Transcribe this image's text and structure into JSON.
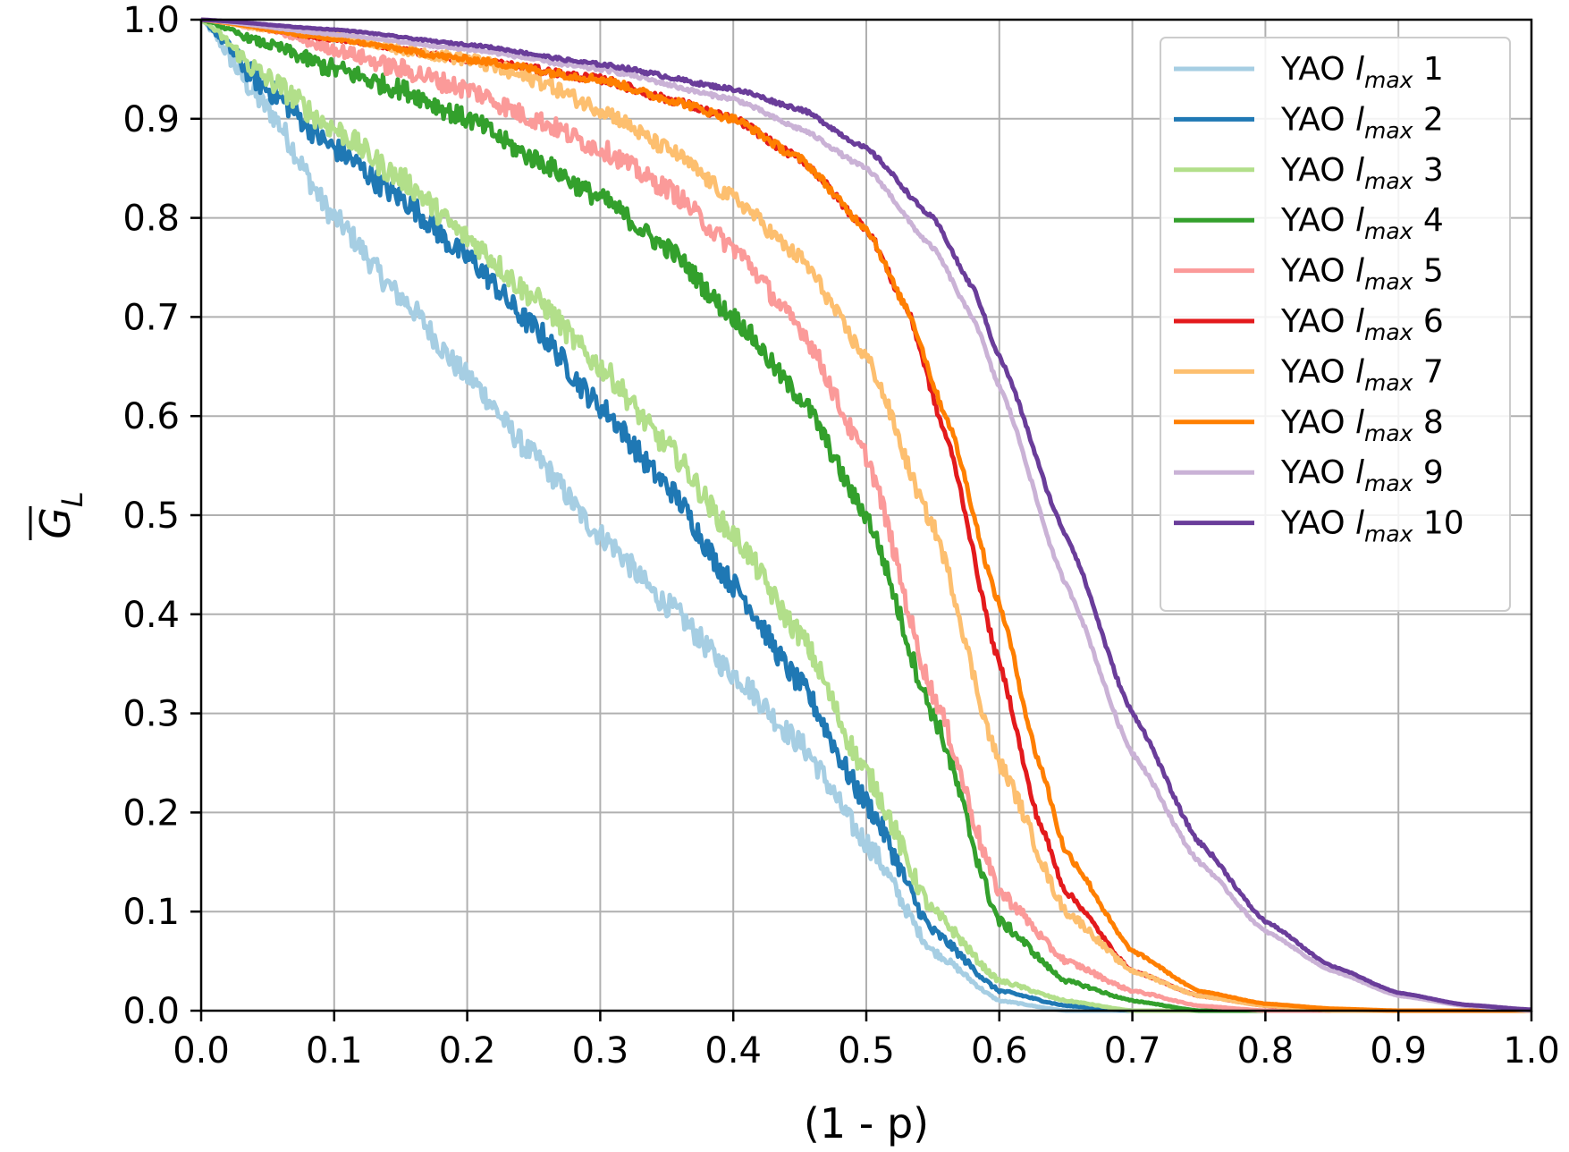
{
  "chart_data": {
    "type": "line",
    "xlabel": "(1 - p)",
    "ylabel": "G",
    "ylabel_sub": "L",
    "ylabel_overline": true,
    "xlim": [
      0.0,
      1.0
    ],
    "ylim": [
      0.0,
      1.0
    ],
    "xticks": [
      "0.0",
      "0.1",
      "0.2",
      "0.3",
      "0.4",
      "0.5",
      "0.6",
      "0.7",
      "0.8",
      "0.9",
      "1.0"
    ],
    "yticks": [
      "0.0",
      "0.1",
      "0.2",
      "0.3",
      "0.4",
      "0.5",
      "0.6",
      "0.7",
      "0.8",
      "0.9",
      "1.0"
    ],
    "grid": true,
    "legend_position": "top-right",
    "series": [
      {
        "name": "YAO",
        "sub": "max",
        "num": "1",
        "color": "#a6cee3",
        "noise": 0.012,
        "points": [
          [
            0,
            1.0
          ],
          [
            0.05,
            0.91
          ],
          [
            0.1,
            0.8
          ],
          [
            0.15,
            0.72
          ],
          [
            0.2,
            0.64
          ],
          [
            0.25,
            0.56
          ],
          [
            0.3,
            0.48
          ],
          [
            0.35,
            0.41
          ],
          [
            0.4,
            0.34
          ],
          [
            0.45,
            0.27
          ],
          [
            0.5,
            0.17
          ],
          [
            0.55,
            0.06
          ],
          [
            0.6,
            0.01
          ],
          [
            0.65,
            0.0
          ],
          [
            1.0,
            0.0
          ]
        ]
      },
      {
        "name": "YAO",
        "sub": "max",
        "num": "2",
        "color": "#1f78b4",
        "noise": 0.012,
        "points": [
          [
            0,
            1.0
          ],
          [
            0.05,
            0.93
          ],
          [
            0.1,
            0.87
          ],
          [
            0.15,
            0.82
          ],
          [
            0.2,
            0.76
          ],
          [
            0.25,
            0.69
          ],
          [
            0.3,
            0.61
          ],
          [
            0.35,
            0.53
          ],
          [
            0.4,
            0.43
          ],
          [
            0.45,
            0.33
          ],
          [
            0.5,
            0.21
          ],
          [
            0.55,
            0.08
          ],
          [
            0.6,
            0.02
          ],
          [
            0.65,
            0.005
          ],
          [
            0.7,
            0.0
          ],
          [
            1.0,
            0.0
          ]
        ]
      },
      {
        "name": "YAO",
        "sub": "max",
        "num": "3",
        "color": "#b2df8a",
        "noise": 0.012,
        "points": [
          [
            0,
            1.0
          ],
          [
            0.05,
            0.94
          ],
          [
            0.1,
            0.89
          ],
          [
            0.15,
            0.84
          ],
          [
            0.2,
            0.78
          ],
          [
            0.25,
            0.72
          ],
          [
            0.3,
            0.65
          ],
          [
            0.35,
            0.57
          ],
          [
            0.4,
            0.48
          ],
          [
            0.45,
            0.38
          ],
          [
            0.5,
            0.24
          ],
          [
            0.55,
            0.1
          ],
          [
            0.6,
            0.03
          ],
          [
            0.65,
            0.01
          ],
          [
            0.7,
            0.0
          ],
          [
            1.0,
            0.0
          ]
        ]
      },
      {
        "name": "YAO",
        "sub": "max",
        "num": "4",
        "color": "#33a02c",
        "noise": 0.01,
        "points": [
          [
            0,
            1.0
          ],
          [
            0.05,
            0.975
          ],
          [
            0.1,
            0.95
          ],
          [
            0.15,
            0.93
          ],
          [
            0.2,
            0.9
          ],
          [
            0.25,
            0.86
          ],
          [
            0.3,
            0.82
          ],
          [
            0.35,
            0.77
          ],
          [
            0.4,
            0.7
          ],
          [
            0.45,
            0.62
          ],
          [
            0.5,
            0.5
          ],
          [
            0.55,
            0.3
          ],
          [
            0.6,
            0.09
          ],
          [
            0.65,
            0.03
          ],
          [
            0.7,
            0.01
          ],
          [
            0.75,
            0.0
          ],
          [
            1.0,
            0.0
          ]
        ]
      },
      {
        "name": "YAO",
        "sub": "max",
        "num": "5",
        "color": "#fb9a99",
        "noise": 0.01,
        "points": [
          [
            0,
            1.0
          ],
          [
            0.05,
            0.99
          ],
          [
            0.1,
            0.97
          ],
          [
            0.15,
            0.95
          ],
          [
            0.2,
            0.93
          ],
          [
            0.25,
            0.9
          ],
          [
            0.3,
            0.87
          ],
          [
            0.35,
            0.83
          ],
          [
            0.4,
            0.77
          ],
          [
            0.45,
            0.69
          ],
          [
            0.5,
            0.56
          ],
          [
            0.55,
            0.32
          ],
          [
            0.6,
            0.12
          ],
          [
            0.65,
            0.05
          ],
          [
            0.7,
            0.02
          ],
          [
            0.75,
            0.005
          ],
          [
            0.8,
            0.0
          ],
          [
            1.0,
            0.0
          ]
        ]
      },
      {
        "name": "YAO",
        "sub": "max",
        "num": "6",
        "color": "#e31a1c",
        "noise": 0.004,
        "points": [
          [
            0,
            1.0
          ],
          [
            0.1,
            0.98
          ],
          [
            0.2,
            0.96
          ],
          [
            0.3,
            0.94
          ],
          [
            0.35,
            0.92
          ],
          [
            0.4,
            0.9
          ],
          [
            0.45,
            0.86
          ],
          [
            0.5,
            0.79
          ],
          [
            0.53,
            0.71
          ],
          [
            0.56,
            0.58
          ],
          [
            0.6,
            0.35
          ],
          [
            0.63,
            0.19
          ],
          [
            0.65,
            0.12
          ],
          [
            0.7,
            0.04
          ],
          [
            0.75,
            0.015
          ],
          [
            0.8,
            0.005
          ],
          [
            0.85,
            0.0
          ],
          [
            1.0,
            0.0
          ]
        ]
      },
      {
        "name": "YAO",
        "sub": "max",
        "num": "7",
        "color": "#fdbf6f",
        "noise": 0.008,
        "points": [
          [
            0,
            1.0
          ],
          [
            0.05,
            0.99
          ],
          [
            0.1,
            0.985
          ],
          [
            0.15,
            0.97
          ],
          [
            0.2,
            0.96
          ],
          [
            0.25,
            0.94
          ],
          [
            0.3,
            0.91
          ],
          [
            0.35,
            0.87
          ],
          [
            0.4,
            0.82
          ],
          [
            0.45,
            0.76
          ],
          [
            0.5,
            0.66
          ],
          [
            0.55,
            0.49
          ],
          [
            0.6,
            0.25
          ],
          [
            0.65,
            0.1
          ],
          [
            0.7,
            0.04
          ],
          [
            0.75,
            0.015
          ],
          [
            0.8,
            0.005
          ],
          [
            0.85,
            0.0
          ],
          [
            1.0,
            0.0
          ]
        ]
      },
      {
        "name": "YAO",
        "sub": "max",
        "num": "8",
        "color": "#ff7f00",
        "noise": 0.004,
        "points": [
          [
            0,
            1.0
          ],
          [
            0.1,
            0.98
          ],
          [
            0.2,
            0.96
          ],
          [
            0.3,
            0.94
          ],
          [
            0.35,
            0.92
          ],
          [
            0.4,
            0.9
          ],
          [
            0.45,
            0.86
          ],
          [
            0.5,
            0.79
          ],
          [
            0.53,
            0.71
          ],
          [
            0.56,
            0.6
          ],
          [
            0.6,
            0.41
          ],
          [
            0.63,
            0.25
          ],
          [
            0.65,
            0.16
          ],
          [
            0.7,
            0.06
          ],
          [
            0.75,
            0.02
          ],
          [
            0.8,
            0.007
          ],
          [
            0.85,
            0.002
          ],
          [
            0.9,
            0.0
          ],
          [
            1.0,
            0.0
          ]
        ]
      },
      {
        "name": "YAO",
        "sub": "max",
        "num": "9",
        "color": "#cab2d6",
        "noise": 0.002,
        "points": [
          [
            0,
            1.0
          ],
          [
            0.1,
            0.985
          ],
          [
            0.2,
            0.97
          ],
          [
            0.3,
            0.95
          ],
          [
            0.4,
            0.92
          ],
          [
            0.45,
            0.89
          ],
          [
            0.5,
            0.85
          ],
          [
            0.55,
            0.77
          ],
          [
            0.58,
            0.7
          ],
          [
            0.6,
            0.63
          ],
          [
            0.65,
            0.43
          ],
          [
            0.7,
            0.26
          ],
          [
            0.75,
            0.15
          ],
          [
            0.8,
            0.08
          ],
          [
            0.85,
            0.04
          ],
          [
            0.9,
            0.015
          ],
          [
            0.95,
            0.005
          ],
          [
            1.0,
            0.0
          ]
        ]
      },
      {
        "name": "YAO",
        "sub": "max",
        "num": "10",
        "color": "#6a3d9a",
        "noise": 0.002,
        "points": [
          [
            0,
            1.0
          ],
          [
            0.1,
            0.99
          ],
          [
            0.2,
            0.975
          ],
          [
            0.3,
            0.955
          ],
          [
            0.4,
            0.93
          ],
          [
            0.45,
            0.91
          ],
          [
            0.5,
            0.87
          ],
          [
            0.55,
            0.8
          ],
          [
            0.58,
            0.73
          ],
          [
            0.6,
            0.66
          ],
          [
            0.65,
            0.48
          ],
          [
            0.7,
            0.3
          ],
          [
            0.75,
            0.17
          ],
          [
            0.8,
            0.09
          ],
          [
            0.85,
            0.045
          ],
          [
            0.9,
            0.018
          ],
          [
            0.95,
            0.006
          ],
          [
            1.0,
            0.001
          ]
        ]
      }
    ]
  }
}
